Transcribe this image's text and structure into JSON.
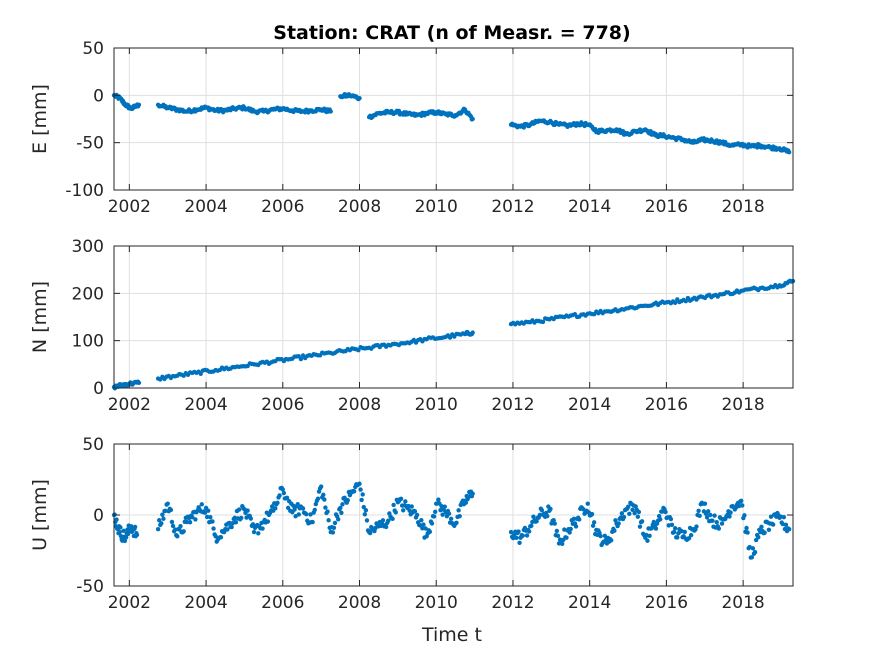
{
  "figure": {
    "title": "Station: CRAT (n of Measr. = 778)",
    "xlabel": "Time t"
  },
  "colors": {
    "marker": "#0072BD",
    "grid": "#dfdfdf",
    "axis": "#262626"
  },
  "chart_data": [
    {
      "type": "scatter",
      "ylabel": "E [mm]",
      "xlim": [
        2001.6,
        2019.3
      ],
      "ylim": [
        -100,
        50
      ],
      "xticks": [
        2002,
        2004,
        2006,
        2008,
        2010,
        2012,
        2014,
        2016,
        2018
      ],
      "yticks": [
        -100,
        -50,
        0,
        50
      ],
      "grid": true,
      "segments": [
        {
          "x": [
            2001.6,
            2001.75,
            2001.9,
            2002.05,
            2002.25
          ],
          "y": [
            0,
            -3,
            -10,
            -14,
            -10
          ]
        },
        {
          "x": [
            2002.75,
            2003.0,
            2003.25,
            2003.5,
            2003.75,
            2004.0,
            2004.25,
            2004.5,
            2004.75,
            2005.0,
            2005.25,
            2005.5,
            2005.75,
            2006.0,
            2006.25,
            2006.5,
            2006.75,
            2007.0,
            2007.25
          ],
          "y": [
            -10,
            -13,
            -15,
            -17,
            -15,
            -13,
            -16,
            -16,
            -14,
            -13,
            -17,
            -17,
            -15,
            -14,
            -16,
            -17,
            -16,
            -15,
            -17
          ]
        },
        {
          "x": [
            2007.5,
            2007.75,
            2008.0
          ],
          "y": [
            -1,
            0,
            -3
          ]
        },
        {
          "x": [
            2008.25,
            2008.5,
            2008.75,
            2009.0,
            2009.25,
            2009.5,
            2009.75,
            2010.0,
            2010.25,
            2010.5,
            2010.75,
            2010.95
          ],
          "y": [
            -23,
            -19,
            -18,
            -18,
            -20,
            -21,
            -19,
            -18,
            -20,
            -21,
            -15,
            -25
          ]
        },
        {
          "x": [
            2011.95,
            2012.2,
            2012.45,
            2012.7,
            2012.95,
            2013.2,
            2013.45,
            2013.7,
            2013.95,
            2014.2,
            2014.45,
            2014.7,
            2014.95,
            2015.2,
            2015.45,
            2015.7,
            2015.95,
            2016.2,
            2016.45,
            2016.7,
            2016.95,
            2017.2,
            2017.45,
            2017.7,
            2017.95,
            2018.2,
            2018.45,
            2018.7,
            2018.95,
            2019.2
          ],
          "y": [
            -31,
            -33,
            -31,
            -27,
            -28,
            -31,
            -32,
            -30,
            -31,
            -38,
            -37,
            -36,
            -41,
            -38,
            -36,
            -42,
            -43,
            -45,
            -47,
            -50,
            -47,
            -48,
            -50,
            -53,
            -52,
            -54,
            -53,
            -55,
            -56,
            -60
          ]
        }
      ]
    },
    {
      "type": "scatter",
      "ylabel": "N [mm]",
      "xlim": [
        2001.6,
        2019.3
      ],
      "ylim": [
        0,
        300
      ],
      "xticks": [
        2002,
        2004,
        2006,
        2008,
        2010,
        2012,
        2014,
        2016,
        2018
      ],
      "yticks": [
        0,
        100,
        200,
        300
      ],
      "grid": true,
      "segments": [
        {
          "x": [
            2001.6,
            2001.8,
            2002.0,
            2002.25
          ],
          "y": [
            2,
            6,
            9,
            11
          ]
        },
        {
          "x": [
            2002.75,
            2003.25,
            2003.75,
            2004.25,
            2004.75,
            2005.25,
            2005.75,
            2006.25,
            2006.75,
            2007.25,
            2007.75,
            2008.25,
            2008.75,
            2009.25,
            2009.75,
            2010.25,
            2010.75,
            2010.95
          ],
          "y": [
            20,
            26,
            32,
            38,
            44,
            50,
            56,
            62,
            68,
            74,
            80,
            85,
            91,
            96,
            103,
            108,
            114,
            117
          ]
        },
        {
          "x": [
            2011.95,
            2012.45,
            2012.95,
            2013.45,
            2013.95,
            2014.45,
            2014.95,
            2015.45,
            2015.95,
            2016.45,
            2016.95,
            2017.45,
            2017.95,
            2018.45,
            2018.95,
            2019.3
          ],
          "y": [
            135,
            139,
            145,
            151,
            157,
            162,
            168,
            174,
            180,
            186,
            192,
            198,
            205,
            211,
            217,
            226
          ]
        }
      ]
    },
    {
      "type": "scatter",
      "ylabel": "U [mm]",
      "xlim": [
        2001.6,
        2019.3
      ],
      "ylim": [
        -50,
        50
      ],
      "xticks": [
        2002,
        2004,
        2006,
        2008,
        2010,
        2012,
        2014,
        2016,
        2018
      ],
      "yticks": [
        -50,
        0,
        50
      ],
      "grid": true,
      "segments": [
        {
          "x": [
            2001.6,
            2001.75,
            2001.9,
            2002.05,
            2002.2
          ],
          "y": [
            0,
            -12,
            -16,
            -8,
            -14
          ]
        },
        {
          "x": [
            2002.75,
            2003.0,
            2003.25,
            2003.5,
            2003.75,
            2004.0,
            2004.25,
            2004.5,
            2004.75,
            2005.0,
            2005.25,
            2005.5,
            2005.75,
            2006.0,
            2006.25,
            2006.5,
            2006.75,
            2007.0,
            2007.25,
            2007.5,
            2007.75,
            2008.0,
            2008.25,
            2008.5,
            2008.75,
            2009.0,
            2009.25,
            2009.5,
            2009.75,
            2010.0,
            2010.25,
            2010.5,
            2010.75,
            2010.95
          ],
          "y": [
            -10,
            8,
            -15,
            -5,
            2,
            5,
            -15,
            -10,
            -2,
            4,
            -12,
            -5,
            3,
            18,
            2,
            5,
            -5,
            20,
            -12,
            5,
            14,
            22,
            -12,
            -8,
            -4,
            9,
            5,
            0,
            -15,
            8,
            2,
            -6,
            10,
            15
          ]
        },
        {
          "x": [
            2011.95,
            2012.2,
            2012.45,
            2012.7,
            2012.95,
            2013.2,
            2013.45,
            2013.7,
            2013.95,
            2014.2,
            2014.45,
            2014.7,
            2014.95,
            2015.2,
            2015.45,
            2015.7,
            2015.95,
            2016.2,
            2016.45,
            2016.7,
            2016.95,
            2017.2,
            2017.45,
            2017.7,
            2017.95,
            2018.2,
            2018.45,
            2018.7,
            2018.95,
            2019.2
          ],
          "y": [
            -12,
            -16,
            -8,
            0,
            3,
            -20,
            -10,
            -2,
            8,
            -14,
            -20,
            -6,
            4,
            6,
            -16,
            -8,
            4,
            -12,
            -15,
            -10,
            8,
            -4,
            -6,
            6,
            10,
            -30,
            -12,
            -6,
            -2,
            -10
          ]
        }
      ]
    }
  ]
}
